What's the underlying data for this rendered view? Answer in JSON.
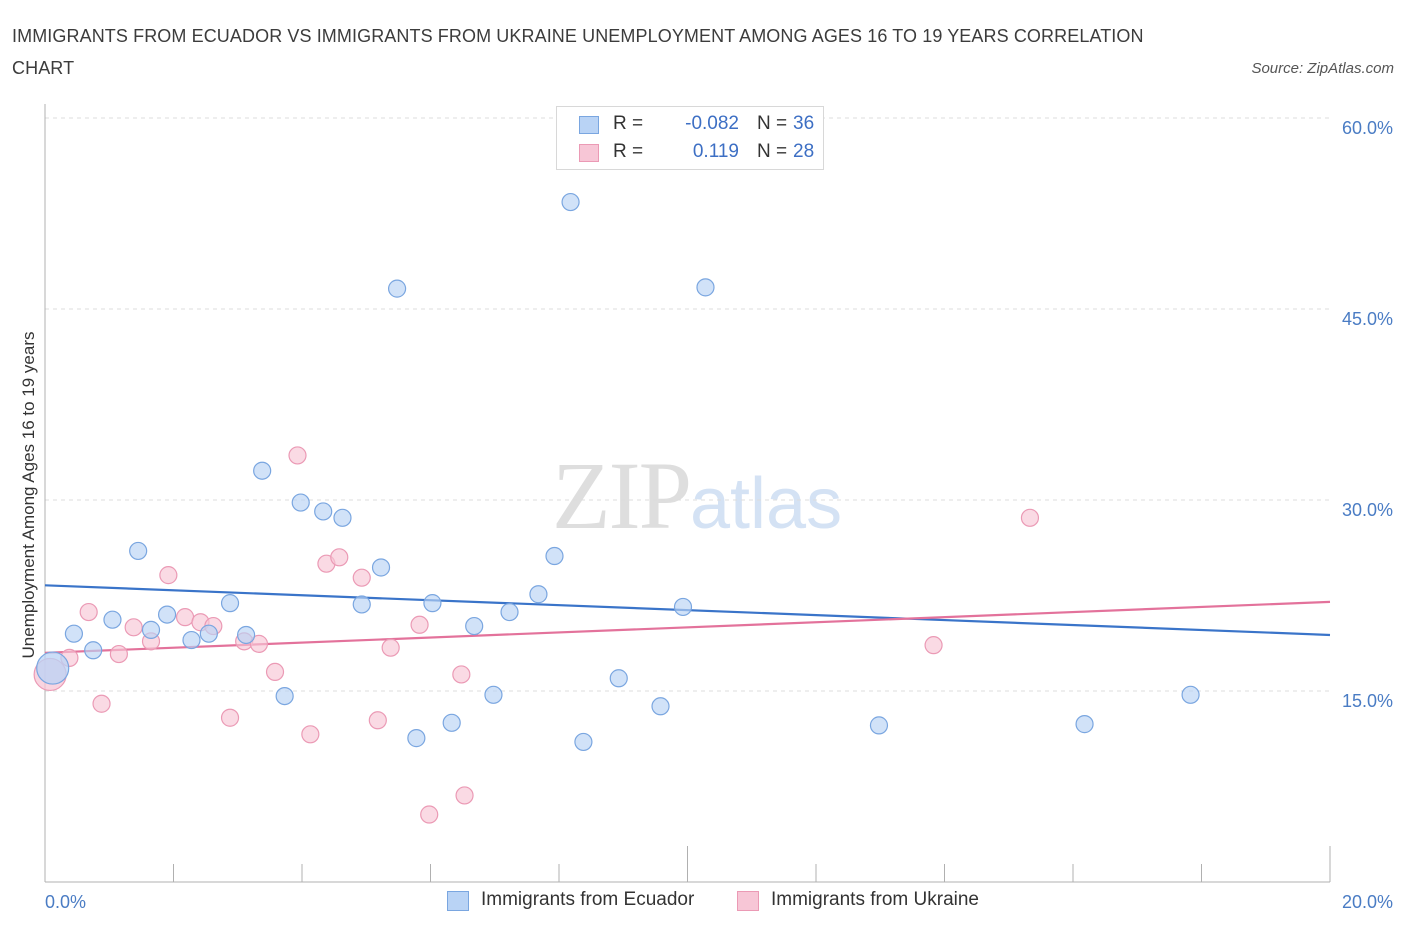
{
  "title": "IMMIGRANTS FROM ECUADOR VS IMMIGRANTS FROM UKRAINE UNEMPLOYMENT AMONG AGES 16 TO 19 YEARS CORRELATION CHART",
  "source": "Source: ZipAtlas.com",
  "watermark": {
    "zip": "ZIP",
    "atlas": "atlas"
  },
  "legend_top": [
    {
      "r_label": "R =",
      "r_value": "-0.082",
      "n_label": "N =",
      "n_value": "36"
    },
    {
      "r_label": "R =",
      "r_value": "0.119",
      "n_label": "N =",
      "n_value": "28"
    }
  ],
  "legend_bottom": [
    {
      "label": "Immigrants from Ecuador"
    },
    {
      "label": "Immigrants from Ukraine"
    }
  ],
  "chart_data": {
    "type": "scatter",
    "title": "IMMIGRANTS FROM ECUADOR VS IMMIGRANTS FROM UKRAINE UNEMPLOYMENT AMONG AGES 16 TO 19 YEARS CORRELATION CHART",
    "xlabel": "",
    "ylabel": "Unemployment Among Ages 16 to 19 years",
    "xlim": [
      0,
      20
    ],
    "ylim": [
      0,
      60
    ],
    "x_tick_labels": [
      "0.0%",
      "20.0%"
    ],
    "y_ticks": [
      15,
      30,
      45,
      60
    ],
    "y_tick_labels": [
      "15.0%",
      "30.0%",
      "45.0%",
      "60.0%"
    ],
    "grid": true,
    "colors": {
      "ecuador_fill": "#b9d3f5",
      "ecuador_stroke": "#7aa6e0",
      "ecuador_line": "#3a74c9",
      "ukraine_fill": "#f7c6d6",
      "ukraine_stroke": "#eb9ab5",
      "ukraine_line": "#e3729b",
      "grid": "#dcdcdc",
      "axis": "#b0b0b0"
    },
    "series": [
      {
        "name": "Immigrants from Ecuador",
        "r": -0.082,
        "n": 36,
        "trend": {
          "x": [
            0,
            20
          ],
          "y": [
            23.3,
            19.4
          ]
        },
        "points": [
          {
            "x": 0.12,
            "y": 16.8,
            "big": true
          },
          {
            "x": 0.45,
            "y": 19.5
          },
          {
            "x": 0.75,
            "y": 18.2
          },
          {
            "x": 1.05,
            "y": 20.6
          },
          {
            "x": 1.45,
            "y": 26.0
          },
          {
            "x": 1.65,
            "y": 19.8
          },
          {
            "x": 1.9,
            "y": 21.0
          },
          {
            "x": 2.28,
            "y": 19.0
          },
          {
            "x": 2.55,
            "y": 19.5
          },
          {
            "x": 2.88,
            "y": 21.9
          },
          {
            "x": 3.13,
            "y": 19.4
          },
          {
            "x": 3.38,
            "y": 32.3
          },
          {
            "x": 3.73,
            "y": 14.6
          },
          {
            "x": 3.98,
            "y": 29.8
          },
          {
            "x": 4.33,
            "y": 29.1
          },
          {
            "x": 4.63,
            "y": 28.6
          },
          {
            "x": 4.93,
            "y": 21.8
          },
          {
            "x": 5.23,
            "y": 24.7
          },
          {
            "x": 5.48,
            "y": 46.6
          },
          {
            "x": 5.78,
            "y": 11.3
          },
          {
            "x": 6.03,
            "y": 21.9
          },
          {
            "x": 6.33,
            "y": 12.5
          },
          {
            "x": 6.68,
            "y": 20.1
          },
          {
            "x": 6.98,
            "y": 14.7
          },
          {
            "x": 7.23,
            "y": 21.2
          },
          {
            "x": 7.68,
            "y": 22.6
          },
          {
            "x": 7.93,
            "y": 25.6
          },
          {
            "x": 8.18,
            "y": 53.4
          },
          {
            "x": 8.38,
            "y": 11.0
          },
          {
            "x": 8.93,
            "y": 16.0
          },
          {
            "x": 9.58,
            "y": 13.8
          },
          {
            "x": 9.93,
            "y": 21.6
          },
          {
            "x": 10.28,
            "y": 46.7
          },
          {
            "x": 12.98,
            "y": 12.3
          },
          {
            "x": 16.18,
            "y": 12.4
          },
          {
            "x": 17.83,
            "y": 14.7
          }
        ]
      },
      {
        "name": "Immigrants from Ukraine",
        "r": 0.119,
        "n": 28,
        "trend": {
          "x": [
            0,
            20
          ],
          "y": [
            18.0,
            22.0
          ]
        },
        "points": [
          {
            "x": 0.08,
            "y": 16.3,
            "big": true
          },
          {
            "x": 0.38,
            "y": 17.6
          },
          {
            "x": 0.68,
            "y": 21.2
          },
          {
            "x": 0.88,
            "y": 14.0
          },
          {
            "x": 1.15,
            "y": 17.9
          },
          {
            "x": 1.38,
            "y": 20.0
          },
          {
            "x": 1.65,
            "y": 18.9
          },
          {
            "x": 1.92,
            "y": 24.1
          },
          {
            "x": 2.18,
            "y": 20.8
          },
          {
            "x": 2.42,
            "y": 20.4
          },
          {
            "x": 2.62,
            "y": 20.1
          },
          {
            "x": 2.88,
            "y": 12.9
          },
          {
            "x": 3.1,
            "y": 18.9
          },
          {
            "x": 3.33,
            "y": 18.7
          },
          {
            "x": 3.58,
            "y": 16.5
          },
          {
            "x": 3.93,
            "y": 33.5
          },
          {
            "x": 4.13,
            "y": 11.6
          },
          {
            "x": 4.38,
            "y": 25.0
          },
          {
            "x": 4.58,
            "y": 25.5
          },
          {
            "x": 4.93,
            "y": 23.9
          },
          {
            "x": 5.18,
            "y": 12.7
          },
          {
            "x": 5.38,
            "y": 18.4
          },
          {
            "x": 5.83,
            "y": 20.2
          },
          {
            "x": 5.98,
            "y": 5.3
          },
          {
            "x": 6.48,
            "y": 16.3
          },
          {
            "x": 6.53,
            "y": 6.8
          },
          {
            "x": 13.83,
            "y": 18.6
          },
          {
            "x": 15.33,
            "y": 28.6
          }
        ]
      }
    ]
  }
}
